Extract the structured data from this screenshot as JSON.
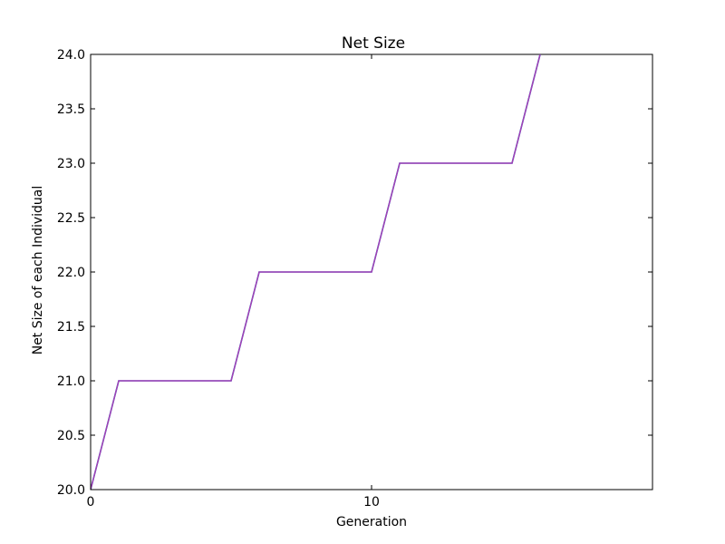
{
  "chart_data": {
    "type": "line",
    "title": "Net Size",
    "xlabel": "Generation",
    "ylabel": "Net Size of each Individual",
    "xlim": [
      0,
      20
    ],
    "ylim": [
      20.0,
      24.0
    ],
    "xticks": [
      0,
      10
    ],
    "xtick_labels": [
      "0",
      "10"
    ],
    "yticks": [
      20.0,
      20.5,
      21.0,
      21.5,
      22.0,
      22.5,
      23.0,
      23.5,
      24.0
    ],
    "ytick_labels": [
      "20.0",
      "20.5",
      "21.0",
      "21.5",
      "22.0",
      "22.5",
      "23.0",
      "23.5",
      "24.0"
    ],
    "grid": false,
    "series": [
      {
        "color": "#1f3fbf",
        "x": [
          0,
          1,
          5,
          6,
          10,
          11,
          15,
          16
        ],
        "y": [
          20,
          21,
          21,
          22,
          22,
          23,
          23,
          24
        ]
      },
      {
        "color": "#b03fb0",
        "x": [
          0,
          1,
          5,
          6,
          10,
          11,
          15,
          16
        ],
        "y": [
          20,
          21,
          21,
          22,
          22,
          23,
          23,
          24
        ]
      }
    ]
  }
}
